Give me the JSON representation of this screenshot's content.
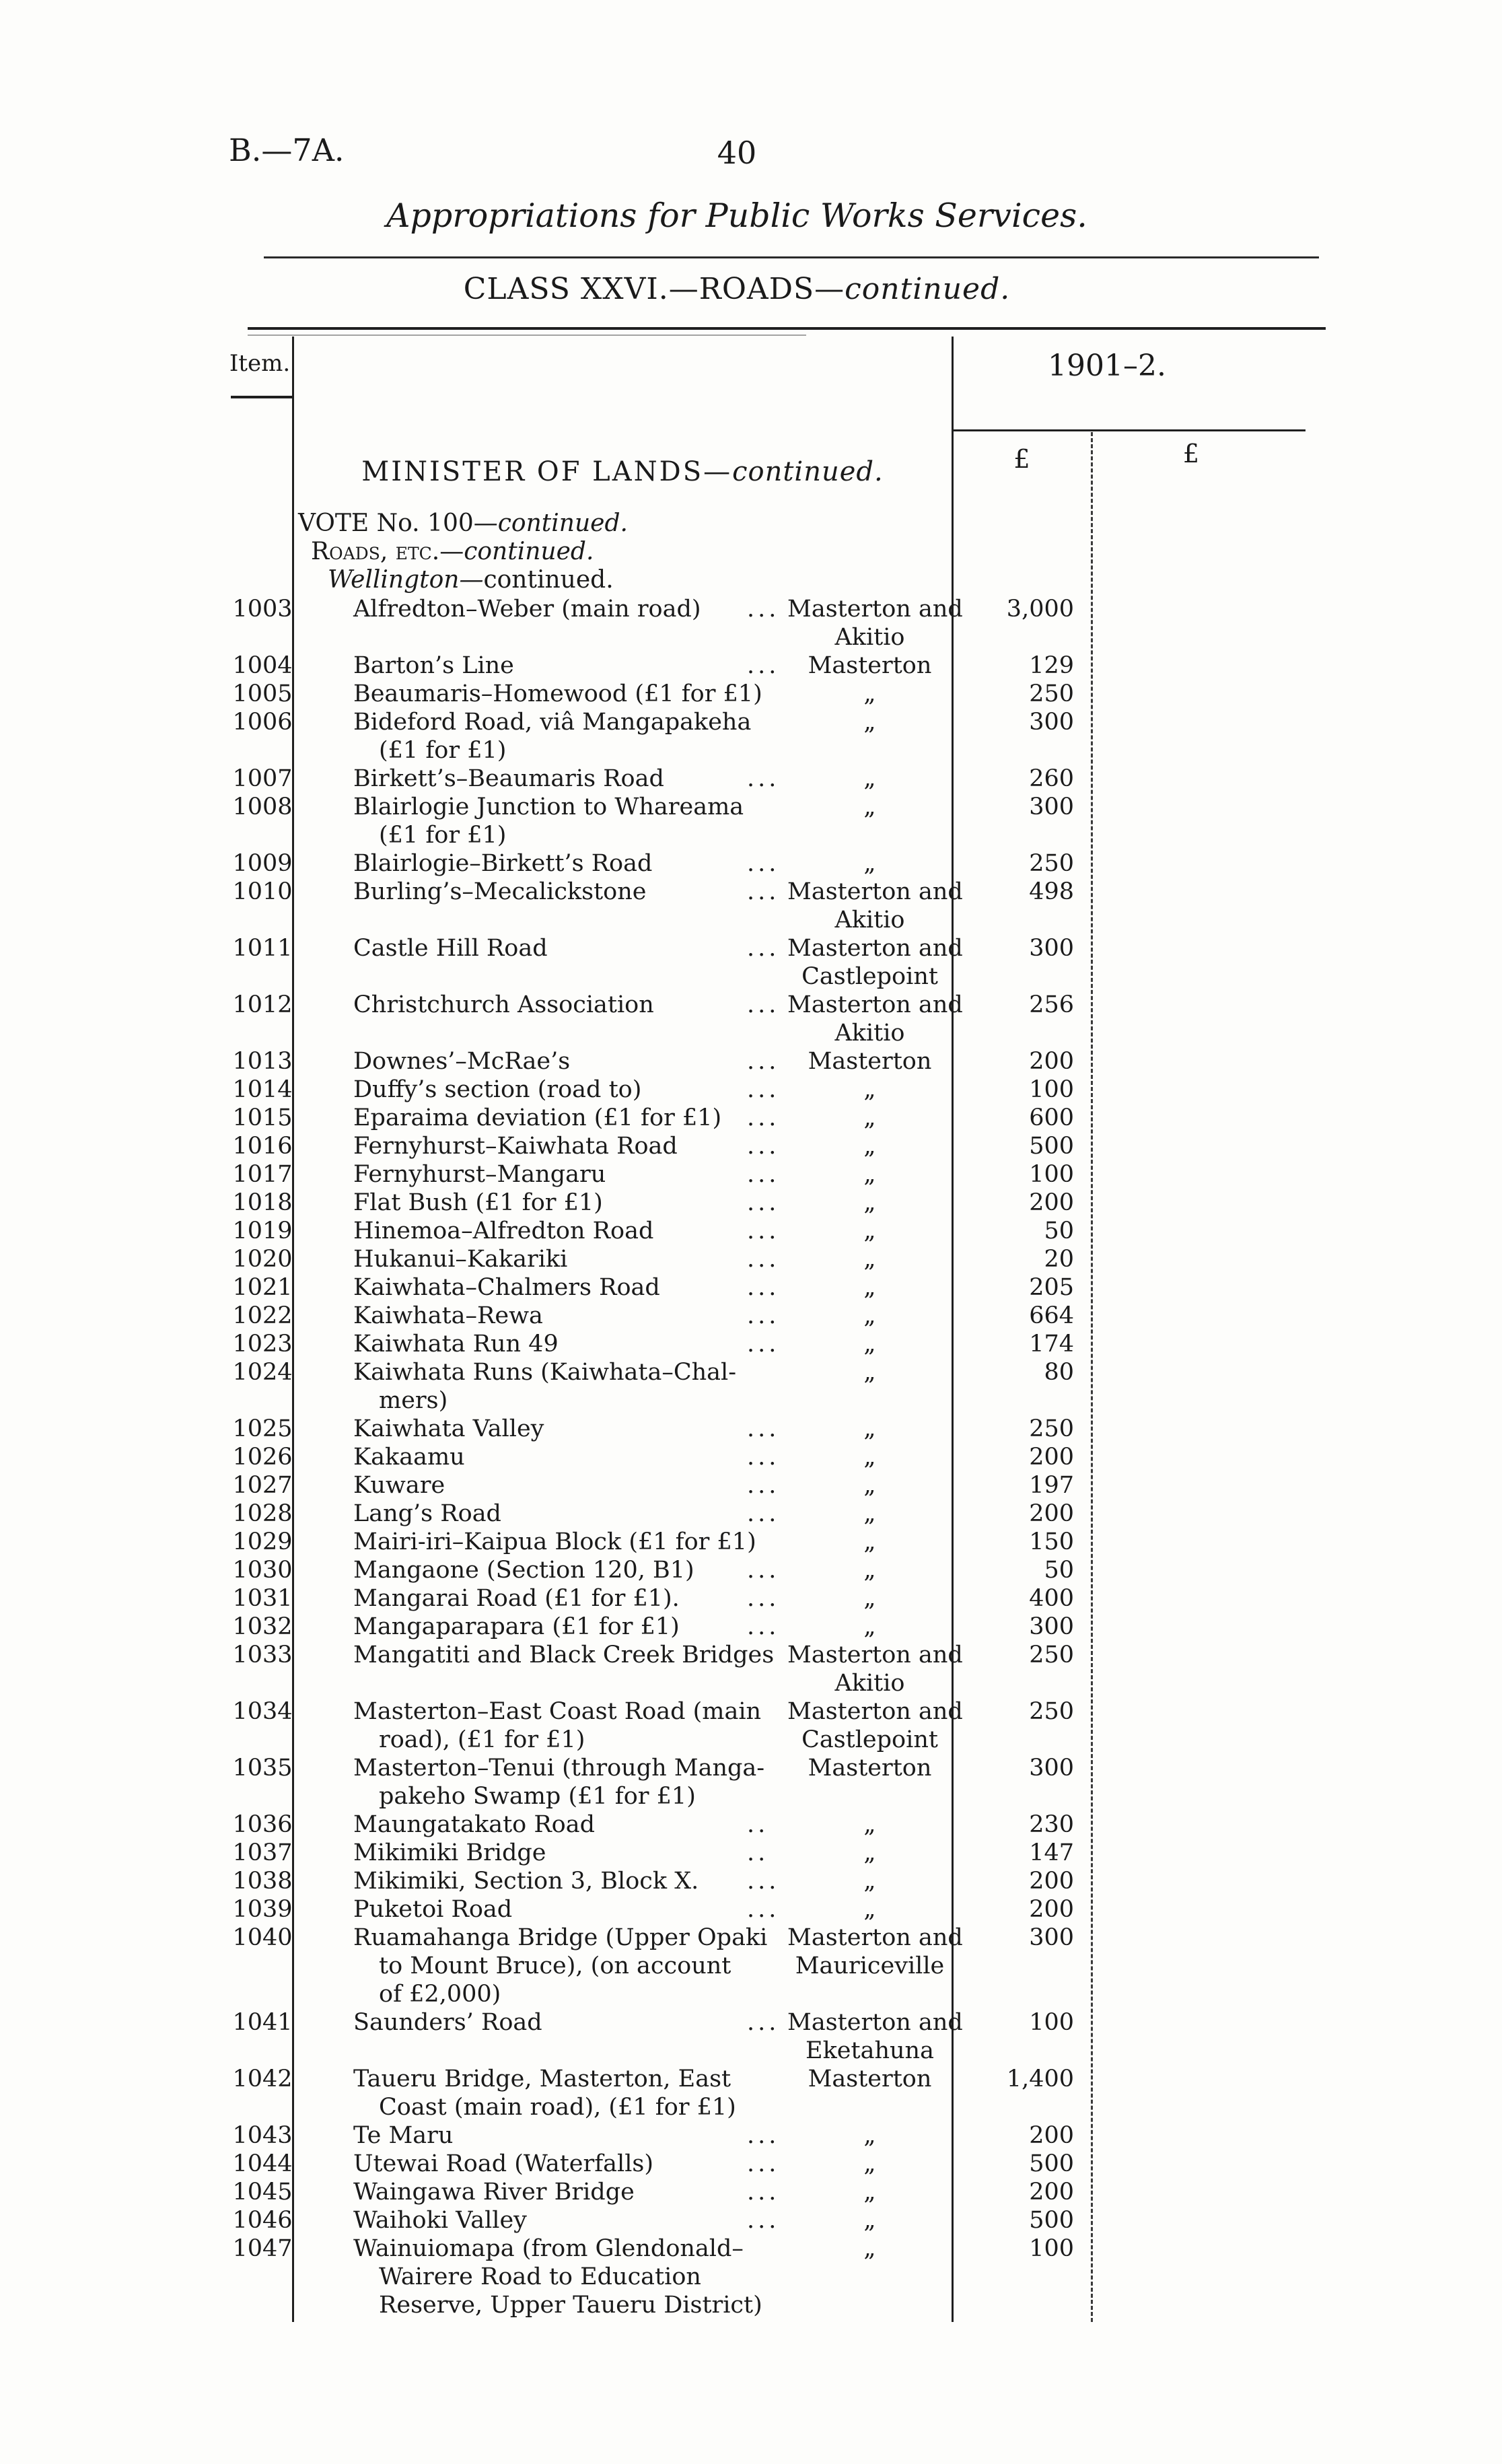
{
  "header": {
    "doc_ref": "B.—7A.",
    "page_number": "40",
    "title": "Appropriations for Public Works Services.",
    "class_heading": "CLASS XXVI.—ROADS—",
    "class_continued": "continued.",
    "item_header": "Item.",
    "year_heading": "1901–2.",
    "pound_left": "£",
    "pound_right": "£"
  },
  "section": {
    "minister": "MINISTER OF LANDS—",
    "minister_continued": "continued.",
    "vote": "VOTE No. 100—",
    "vote_continued": "continued.",
    "roads": "Roads, etc.—",
    "roads_continued": "continued.",
    "district": "Wellington—",
    "district_continued": "continued."
  },
  "table": {
    "rows": [
      {
        "item": "1003",
        "desc": [
          "Alfredton–Weber (main road)"
        ],
        "dots": "...",
        "loc": [
          "Masterton and",
          "Akitio"
        ],
        "amount": "3,000"
      },
      {
        "item": "1004",
        "desc": [
          "Barton’s Line"
        ],
        "dots": "...",
        "loc": [
          "Masterton"
        ],
        "amount": "129"
      },
      {
        "item": "1005",
        "desc": [
          "Beaumaris–Homewood (£1 for £1)"
        ],
        "dots": "",
        "loc": [
          "„"
        ],
        "amount": "250"
      },
      {
        "item": "1006",
        "desc": [
          "Bideford Road, viâ Mangapakeha",
          "(£1 for £1)"
        ],
        "dots": "",
        "loc": [
          "„"
        ],
        "amount": "300"
      },
      {
        "item": "1007",
        "desc": [
          "Birkett’s–Beaumaris Road"
        ],
        "dots": "...",
        "loc": [
          "„"
        ],
        "amount": "260"
      },
      {
        "item": "1008",
        "desc": [
          "Blairlogie Junction to Whareama",
          "(£1 for £1)"
        ],
        "dots": "",
        "loc": [
          "„"
        ],
        "amount": "300"
      },
      {
        "item": "1009",
        "desc": [
          "Blairlogie–Birkett’s Road"
        ],
        "dots": "...",
        "loc": [
          "„"
        ],
        "amount": "250"
      },
      {
        "item": "1010",
        "desc": [
          "Burling’s–Mecalickstone"
        ],
        "dots": "...",
        "loc": [
          "Masterton and",
          "Akitio"
        ],
        "amount": "498"
      },
      {
        "item": "1011",
        "desc": [
          "Castle Hill Road"
        ],
        "dots": "...",
        "loc": [
          "Masterton and",
          "Castlepoint"
        ],
        "amount": "300"
      },
      {
        "item": "1012",
        "desc": [
          "Christchurch Association"
        ],
        "dots": "...",
        "loc": [
          "Masterton and",
          "Akitio"
        ],
        "amount": "256"
      },
      {
        "item": "1013",
        "desc": [
          "Downes’–McRae’s"
        ],
        "dots": "...",
        "loc": [
          "Masterton"
        ],
        "amount": "200"
      },
      {
        "item": "1014",
        "desc": [
          "Duffy’s section (road to)"
        ],
        "dots": "...",
        "loc": [
          "„"
        ],
        "amount": "100"
      },
      {
        "item": "1015",
        "desc": [
          "Eparaima deviation (£1 for £1)"
        ],
        "dots": "...",
        "loc": [
          "„"
        ],
        "amount": "600"
      },
      {
        "item": "1016",
        "desc": [
          "Fernyhurst–Kaiwhata Road"
        ],
        "dots": "...",
        "loc": [
          "„"
        ],
        "amount": "500"
      },
      {
        "item": "1017",
        "desc": [
          "Fernyhurst–Mangaru"
        ],
        "dots": "...",
        "loc": [
          "„"
        ],
        "amount": "100"
      },
      {
        "item": "1018",
        "desc": [
          "Flat Bush (£1 for £1)"
        ],
        "dots": "...",
        "loc": [
          "„"
        ],
        "amount": "200"
      },
      {
        "item": "1019",
        "desc": [
          "Hinemoa–Alfredton Road"
        ],
        "dots": "...",
        "loc": [
          "„"
        ],
        "amount": "50"
      },
      {
        "item": "1020",
        "desc": [
          "Hukanui–Kakariki"
        ],
        "dots": "...",
        "loc": [
          "„"
        ],
        "amount": "20"
      },
      {
        "item": "1021",
        "desc": [
          "Kaiwhata–Chalmers Road"
        ],
        "dots": "...",
        "loc": [
          "„"
        ],
        "amount": "205"
      },
      {
        "item": "1022",
        "desc": [
          "Kaiwhata–Rewa"
        ],
        "dots": "...",
        "loc": [
          "„"
        ],
        "amount": "664"
      },
      {
        "item": "1023",
        "desc": [
          "Kaiwhata Run 49"
        ],
        "dots": "...",
        "loc": [
          "„"
        ],
        "amount": "174"
      },
      {
        "item": "1024",
        "desc": [
          "Kaiwhata Runs (Kaiwhata–Chal-",
          "mers)"
        ],
        "dots": "",
        "loc": [
          "„"
        ],
        "amount": "80"
      },
      {
        "item": "1025",
        "desc": [
          "Kaiwhata Valley"
        ],
        "dots": "...",
        "loc": [
          "„"
        ],
        "amount": "250"
      },
      {
        "item": "1026",
        "desc": [
          "Kakaamu"
        ],
        "dots": "...",
        "loc": [
          "„"
        ],
        "amount": "200"
      },
      {
        "item": "1027",
        "desc": [
          "Kuware"
        ],
        "dots": "...",
        "loc": [
          "„"
        ],
        "amount": "197"
      },
      {
        "item": "1028",
        "desc": [
          "Lang’s Road"
        ],
        "dots": "...",
        "loc": [
          "„"
        ],
        "amount": "200"
      },
      {
        "item": "1029",
        "desc": [
          "Mairi-iri–Kaipua Block (£1 for £1)"
        ],
        "dots": "",
        "loc": [
          "„"
        ],
        "amount": "150"
      },
      {
        "item": "1030",
        "desc": [
          "Mangaone (Section 120, B1)"
        ],
        "dots": "...",
        "loc": [
          "„"
        ],
        "amount": "50"
      },
      {
        "item": "1031",
        "desc": [
          "Mangarai Road (£1 for £1)."
        ],
        "dots": "...",
        "loc": [
          "„"
        ],
        "amount": "400"
      },
      {
        "item": "1032",
        "desc": [
          "Mangaparapara (£1 for £1)"
        ],
        "dots": "...",
        "loc": [
          "„"
        ],
        "amount": "300"
      },
      {
        "item": "1033",
        "desc": [
          "Mangatiti and Black Creek Bridges"
        ],
        "dots": "",
        "loc": [
          "Masterton and",
          "Akitio"
        ],
        "amount": "250"
      },
      {
        "item": "1034",
        "desc": [
          "Masterton–East Coast Road (main",
          "road), (£1 for £1)"
        ],
        "dots": "",
        "loc": [
          "Masterton and",
          "Castlepoint"
        ],
        "amount": "250"
      },
      {
        "item": "1035",
        "desc": [
          "Masterton–Tenui (through Manga-",
          "pakeho Swamp (£1 for £1)"
        ],
        "dots": "",
        "loc": [
          "Masterton"
        ],
        "amount": "300"
      },
      {
        "item": "1036",
        "desc": [
          "Maungatakato Road"
        ],
        "dots": "..",
        "loc": [
          "„"
        ],
        "amount": "230"
      },
      {
        "item": "1037",
        "desc": [
          "Mikimiki Bridge"
        ],
        "dots": "..",
        "loc": [
          "„"
        ],
        "amount": "147"
      },
      {
        "item": "1038",
        "desc": [
          "Mikimiki, Section 3, Block X."
        ],
        "dots": "...",
        "loc": [
          "„"
        ],
        "amount": "200"
      },
      {
        "item": "1039",
        "desc": [
          "Puketoi Road"
        ],
        "dots": "...",
        "loc": [
          "„"
        ],
        "amount": "200"
      },
      {
        "item": "1040",
        "desc": [
          "Ruamahanga Bridge (Upper Opaki",
          "to Mount Bruce), (on account",
          "of £2,000)"
        ],
        "dots": "",
        "loc": [
          "Masterton and",
          "Mauriceville"
        ],
        "amount": "300"
      },
      {
        "item": "1041",
        "desc": [
          "Saunders’ Road"
        ],
        "dots": "...",
        "loc": [
          "Masterton and",
          "Eketahuna"
        ],
        "amount": "100"
      },
      {
        "item": "1042",
        "desc": [
          "Taueru Bridge, Masterton, East",
          "Coast (main road), (£1 for £1)"
        ],
        "dots": "",
        "loc": [
          "Masterton"
        ],
        "amount": "1,400"
      },
      {
        "item": "1043",
        "desc": [
          "Te Maru"
        ],
        "dots": "...",
        "loc": [
          "„"
        ],
        "amount": "200"
      },
      {
        "item": "1044",
        "desc": [
          "Utewai Road (Waterfalls)"
        ],
        "dots": "...",
        "loc": [
          "„"
        ],
        "amount": "500"
      },
      {
        "item": "1045",
        "desc": [
          "Waingawa River Bridge"
        ],
        "dots": "...",
        "loc": [
          "„"
        ],
        "amount": "200"
      },
      {
        "item": "1046",
        "desc": [
          "Waihoki Valley"
        ],
        "dots": "...",
        "loc": [
          "„"
        ],
        "amount": "500"
      },
      {
        "item": "1047",
        "desc": [
          "Wainuiomapa (from Glendonald–",
          "Wairere Road to Education",
          "Reserve, Upper Taueru District)"
        ],
        "dots": "",
        "loc": [
          "„"
        ],
        "amount": "100"
      }
    ]
  }
}
